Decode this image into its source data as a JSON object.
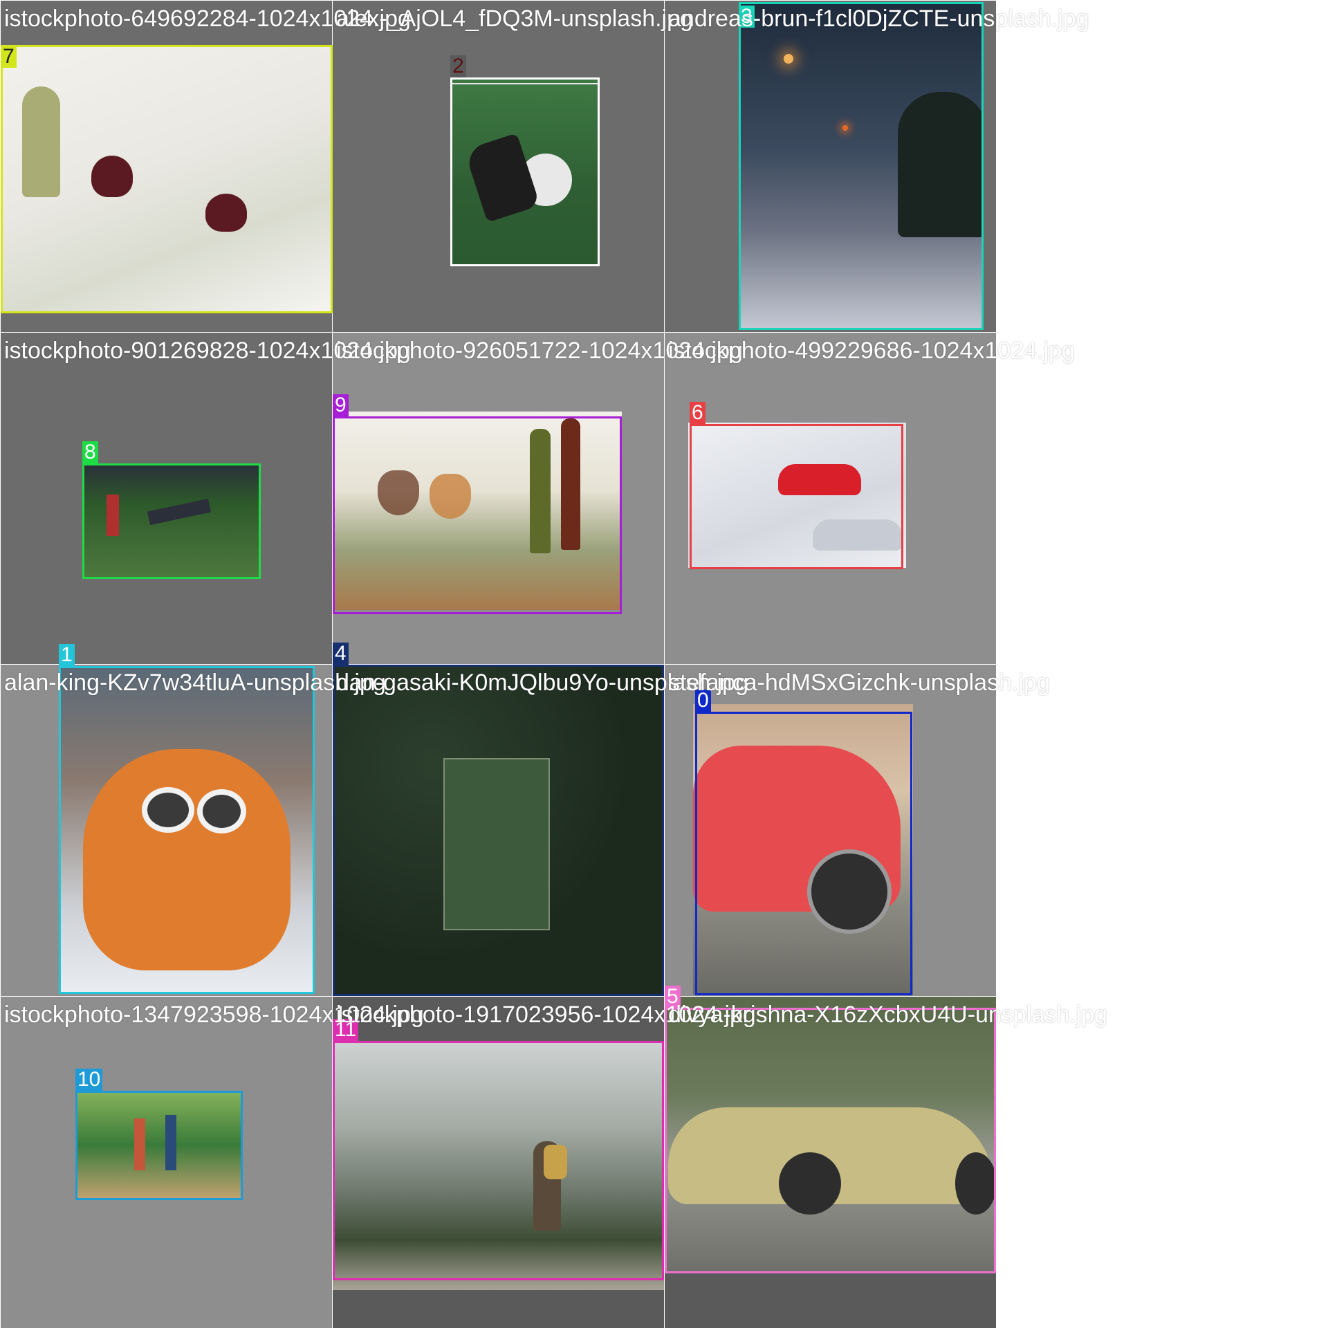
{
  "grid": [
    {
      "caption": "istockphoto-649692284-1024x1024.jpg",
      "bg": "#6c6c6c",
      "thumb_colors": [
        "#f3f1ec",
        "#d9dccf",
        "#a9ac74",
        "#5b1a22"
      ],
      "box_id": "7",
      "box_color": "#d3e61c",
      "tag_text_color": "#222222"
    },
    {
      "caption": "alex-_AjOL4_fDQ3M-unsplash.jpg",
      "bg": "#6c6c6c",
      "thumb_colors": [
        "#3f7a44",
        "#2e5e33",
        "#1d1d1d",
        "#e8e8e8"
      ],
      "box_id": "2",
      "box_color": "#ffffff",
      "tag_text_color": "#5a1010"
    },
    {
      "caption": "andreas-brun-f1cl0DjZCTE-unsplash.jpg",
      "bg": "#6c6c6c",
      "thumb_colors": [
        "#1e2b3c",
        "#3b4a5e",
        "#d88b3a",
        "#c6c9d4"
      ],
      "box_id": "3",
      "box_color": "#19d4b8",
      "tag_text_color": "#ffffff"
    },
    {
      "caption": "istockphoto-901269828-1024x1024.jpg",
      "bg": "#6c6c6c",
      "thumb_colors": [
        "#2d5a2a",
        "#4d7a3e",
        "#2a2f3a",
        "#d8d8d8"
      ],
      "box_id": "8",
      "box_color": "#1ddc45",
      "tag_text_color": "#ffffff"
    },
    {
      "caption": "istockphoto-926051722-1024x1024.jpg",
      "bg": "#8e8e8e",
      "thumb_colors": [
        "#f2f0ea",
        "#a8794c",
        "#5d6a2a",
        "#c9813f"
      ],
      "box_id": "9",
      "box_color": "#a61ed6",
      "tag_text_color": "#ffffff"
    },
    {
      "caption": "istockphoto-499229686-1024x1024.jpg",
      "bg": "#8e8e8e",
      "thumb_colors": [
        "#eef0f4",
        "#d6d9e0",
        "#d81f2a",
        "#9aa0a8"
      ],
      "box_id": "6",
      "box_color": "#e83f45",
      "tag_text_color": "#ffffff"
    },
    {
      "caption": "alan-king-KZv7w34tluA-unsplash.jpg",
      "bg": "#8e8e8e",
      "thumb_colors": [
        "#e07c2e",
        "#c65a1c",
        "#f2f2f2",
        "#3a3a3a"
      ],
      "box_id": "1",
      "box_color": "#22c6d8",
      "tag_text_color": "#ffffff"
    },
    {
      "caption": "dan-gasaki-K0mJQlbu9Yo-unsplash.jpg",
      "bg": "#1f2a22",
      "thumb_colors": [
        "#1c2a1e",
        "#2c3f2d",
        "#3e5a3c",
        "#7f8c74"
      ],
      "box_id": "4",
      "box_color": "#162f6f",
      "tag_text_color": "#ffffff"
    },
    {
      "caption": "stefanca-hdMSxGizchk-unsplash.jpg",
      "bg": "#8e8e8e",
      "thumb_colors": [
        "#e64b4f",
        "#b22126",
        "#2f2f2f",
        "#c7a98f"
      ],
      "box_id": "0",
      "box_color": "#1029c9",
      "tag_text_color": "#ffffff"
    },
    {
      "caption": "istockphoto-1347923598-1024x1024.jpg",
      "bg": "#8e8e8e",
      "thumb_colors": [
        "#3a7b3a",
        "#88b35b",
        "#c5a372",
        "#8b5a2b"
      ],
      "box_id": "10",
      "box_color": "#1e9bd6",
      "tag_text_color": "#ffffff"
    },
    {
      "caption": "istockphoto-1917023956-1024x1024.jpg",
      "bg": "#5a5a5a",
      "thumb_colors": [
        "#cfd3d3",
        "#6f7a6e",
        "#3d4d35",
        "#a9a397"
      ],
      "box_id": "11",
      "box_color": "#db2fb0",
      "tag_text_color": "#ffffff"
    },
    {
      "caption": "divya-krishna-X16zXcbxU4U-unsplash.jpg",
      "bg": "#5a5a5a",
      "thumb_colors": [
        "#9a8d5a",
        "#c7bd84",
        "#2d2d2d",
        "#6a7a5a"
      ],
      "box_id": "5",
      "box_color": "#ef6fcf",
      "tag_text_color": "#ffffff"
    }
  ]
}
